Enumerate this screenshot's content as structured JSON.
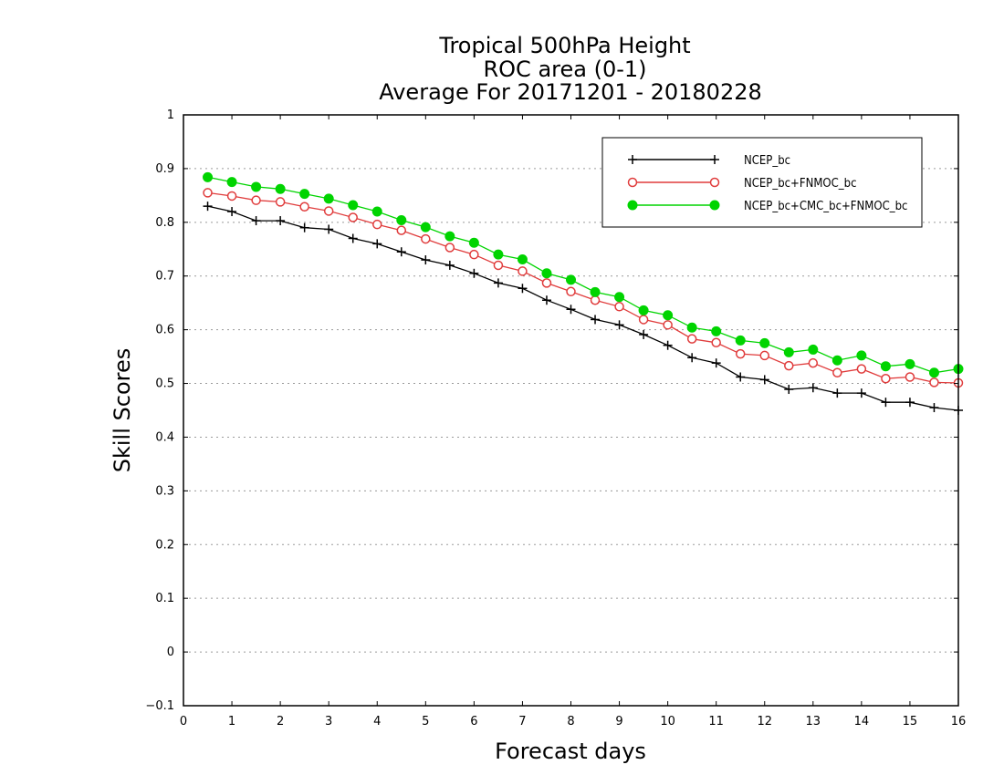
{
  "chart_data": {
    "type": "line",
    "title": [
      "Tropical 500hPa Height",
      "ROC area (0-1)",
      "Average For 20171201 - 20180228"
    ],
    "xlabel": "Forecast days",
    "ylabel": "Skill Scores",
    "xlim": [
      0,
      16
    ],
    "ylim": [
      -0.1,
      1
    ],
    "xticks": [
      "0",
      "1",
      "2",
      "3",
      "4",
      "5",
      "6",
      "7",
      "8",
      "9",
      "10",
      "11",
      "12",
      "13",
      "14",
      "15",
      "16"
    ],
    "yticks": [
      "−0.1",
      "0",
      "0.1",
      "0.2",
      "0.3",
      "0.4",
      "0.5",
      "0.6",
      "0.7",
      "0.8",
      "0.9",
      "1"
    ],
    "grid": "horizontal dotted",
    "legend_position": "top-right",
    "x": [
      0.5,
      1,
      1.5,
      2,
      2.5,
      3,
      3.5,
      4,
      4.5,
      5,
      5.5,
      6,
      6.5,
      7,
      7.5,
      8,
      8.5,
      9,
      9.5,
      10,
      10.5,
      11,
      11.5,
      12,
      12.5,
      13,
      13.5,
      14,
      14.5,
      15,
      15.5,
      16
    ],
    "series": [
      {
        "name": "NCEP_bc",
        "color": "#000000",
        "marker": "plus",
        "values": [
          0.83,
          0.82,
          0.803,
          0.803,
          0.79,
          0.787,
          0.77,
          0.76,
          0.745,
          0.73,
          0.72,
          0.705,
          0.687,
          0.677,
          0.655,
          0.638,
          0.619,
          0.609,
          0.591,
          0.571,
          0.548,
          0.538,
          0.512,
          0.507,
          0.489,
          0.492,
          0.482,
          0.482,
          0.465,
          0.465,
          0.455,
          0.45
        ]
      },
      {
        "name": "NCEP_bc+FNMOC_bc",
        "color": "#e03c3c",
        "marker": "open-circle",
        "values": [
          0.855,
          0.849,
          0.841,
          0.838,
          0.829,
          0.821,
          0.809,
          0.796,
          0.785,
          0.769,
          0.753,
          0.74,
          0.72,
          0.709,
          0.687,
          0.671,
          0.655,
          0.643,
          0.619,
          0.609,
          0.583,
          0.576,
          0.555,
          0.552,
          0.533,
          0.538,
          0.52,
          0.527,
          0.509,
          0.512,
          0.502,
          0.501
        ]
      },
      {
        "name": "NCEP_bc+CMC_bc+FNMOC_bc",
        "color": "#00d400",
        "marker": "filled-circle",
        "values": [
          0.884,
          0.875,
          0.866,
          0.862,
          0.853,
          0.844,
          0.832,
          0.82,
          0.804,
          0.791,
          0.774,
          0.762,
          0.74,
          0.731,
          0.705,
          0.693,
          0.67,
          0.661,
          0.636,
          0.627,
          0.604,
          0.597,
          0.58,
          0.575,
          0.558,
          0.563,
          0.543,
          0.552,
          0.532,
          0.536,
          0.52,
          0.527
        ]
      }
    ]
  }
}
